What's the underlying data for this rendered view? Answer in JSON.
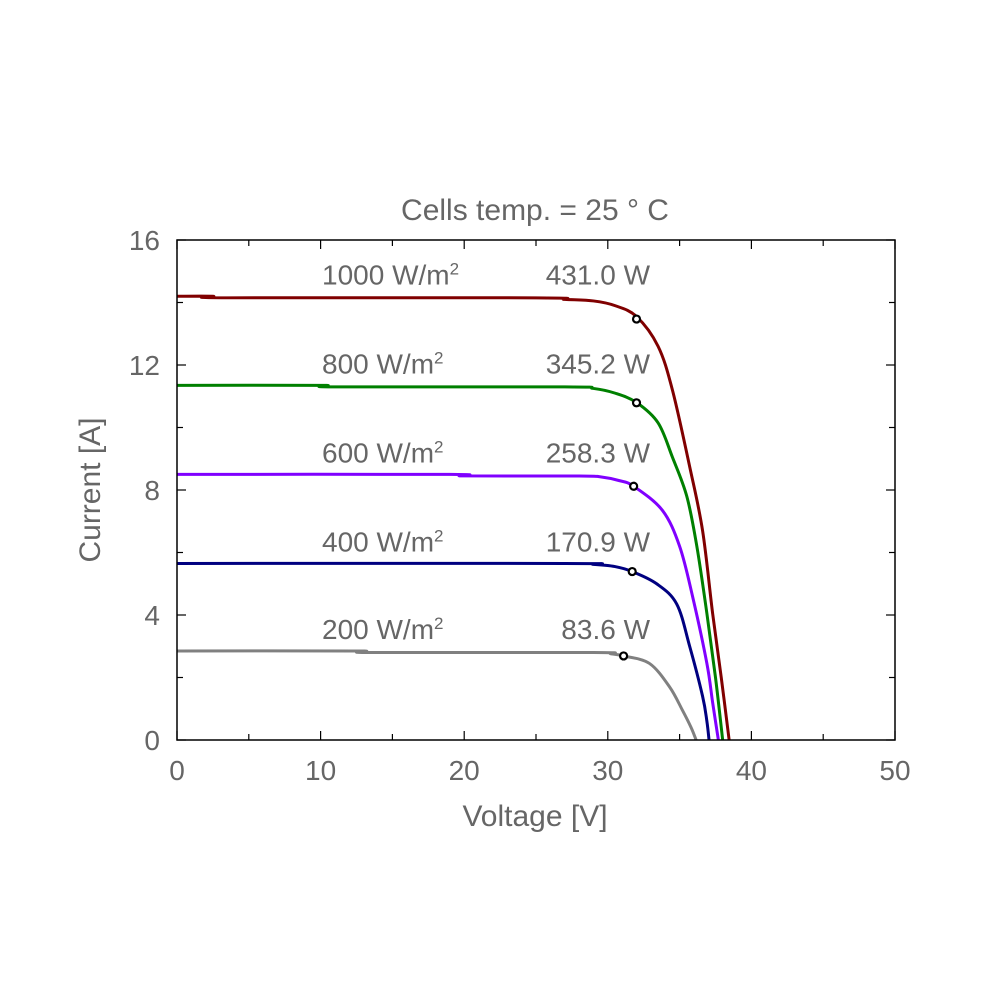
{
  "chart_data": {
    "type": "line",
    "title": "Cells temp. = 25 ° C",
    "xlabel": "Voltage [V]",
    "ylabel": "Current [A]",
    "xlim": [
      0,
      50
    ],
    "ylim": [
      0,
      16
    ],
    "xticks": [
      "0",
      "10",
      "20",
      "30",
      "40",
      "50"
    ],
    "yticks": [
      "0",
      "4",
      "8",
      "12",
      "16"
    ],
    "grid": false,
    "legend": "inline labels above each curve",
    "series": [
      {
        "name": "1000 W/m²",
        "irradiance": "1000 W/m",
        "power_label": "431.0 W",
        "color": "#800000",
        "x": [
          0,
          2.5,
          3.5,
          25,
          27,
          29,
          30.5,
          32.0,
          33.5,
          34.5,
          35.7,
          36.6,
          37.3,
          37.9,
          38.45
        ],
        "y": [
          14.2,
          14.2,
          14.15,
          14.15,
          14.1,
          14.05,
          13.9,
          13.55,
          12.6,
          11.2,
          8.75,
          6.7,
          4.05,
          2.0,
          0
        ],
        "mpp": [
          32.0,
          13.47
        ]
      },
      {
        "name": "800 W/m²",
        "irradiance": "800 W/m",
        "power_label": "345.2 W",
        "color": "#008000",
        "x": [
          0,
          10,
          11,
          27,
          29,
          30.5,
          32.0,
          33.5,
          34.5,
          35.5,
          36.2,
          36.9,
          37.5,
          38.0
        ],
        "y": [
          11.35,
          11.35,
          11.3,
          11.3,
          11.25,
          11.1,
          10.8,
          10.15,
          9.05,
          7.8,
          6.2,
          4.05,
          2.0,
          0
        ],
        "mpp": [
          32.0,
          10.79
        ]
      },
      {
        "name": "600 W/m²",
        "irradiance": "600 W/m",
        "power_label": "258.3 W",
        "color": "#8000ff",
        "x": [
          0,
          19,
          20,
          28,
          29.5,
          30.8,
          31.8,
          33.8,
          35.0,
          35.9,
          36.9,
          37.3,
          37.7
        ],
        "y": [
          8.5,
          8.5,
          8.45,
          8.45,
          8.42,
          8.3,
          8.12,
          7.35,
          6.2,
          4.6,
          2.45,
          1.2,
          0
        ],
        "mpp": [
          31.8,
          8.12
        ]
      },
      {
        "name": "400 W/m²",
        "irradiance": "400 W/m",
        "power_label": "170.9 W",
        "color": "#000080",
        "x": [
          0,
          27,
          29,
          30.5,
          31.7,
          33.4,
          34.8,
          35.7,
          36.6,
          36.9,
          37.05
        ],
        "y": [
          5.65,
          5.65,
          5.62,
          5.55,
          5.39,
          5.0,
          4.35,
          3.0,
          1.4,
          0.6,
          0
        ],
        "mpp": [
          31.7,
          5.39
        ]
      },
      {
        "name": "200 W/m²",
        "irradiance": "200 W/m",
        "power_label": "83.6 W",
        "color": "#808080",
        "x": [
          0,
          12.5,
          13.5,
          29,
          30.2,
          31.1,
          32.9,
          34.3,
          35.2,
          35.8,
          36.15
        ],
        "y": [
          2.85,
          2.85,
          2.8,
          2.8,
          2.76,
          2.69,
          2.45,
          1.7,
          0.95,
          0.4,
          0
        ],
        "mpp": [
          31.1,
          2.69
        ]
      }
    ]
  }
}
